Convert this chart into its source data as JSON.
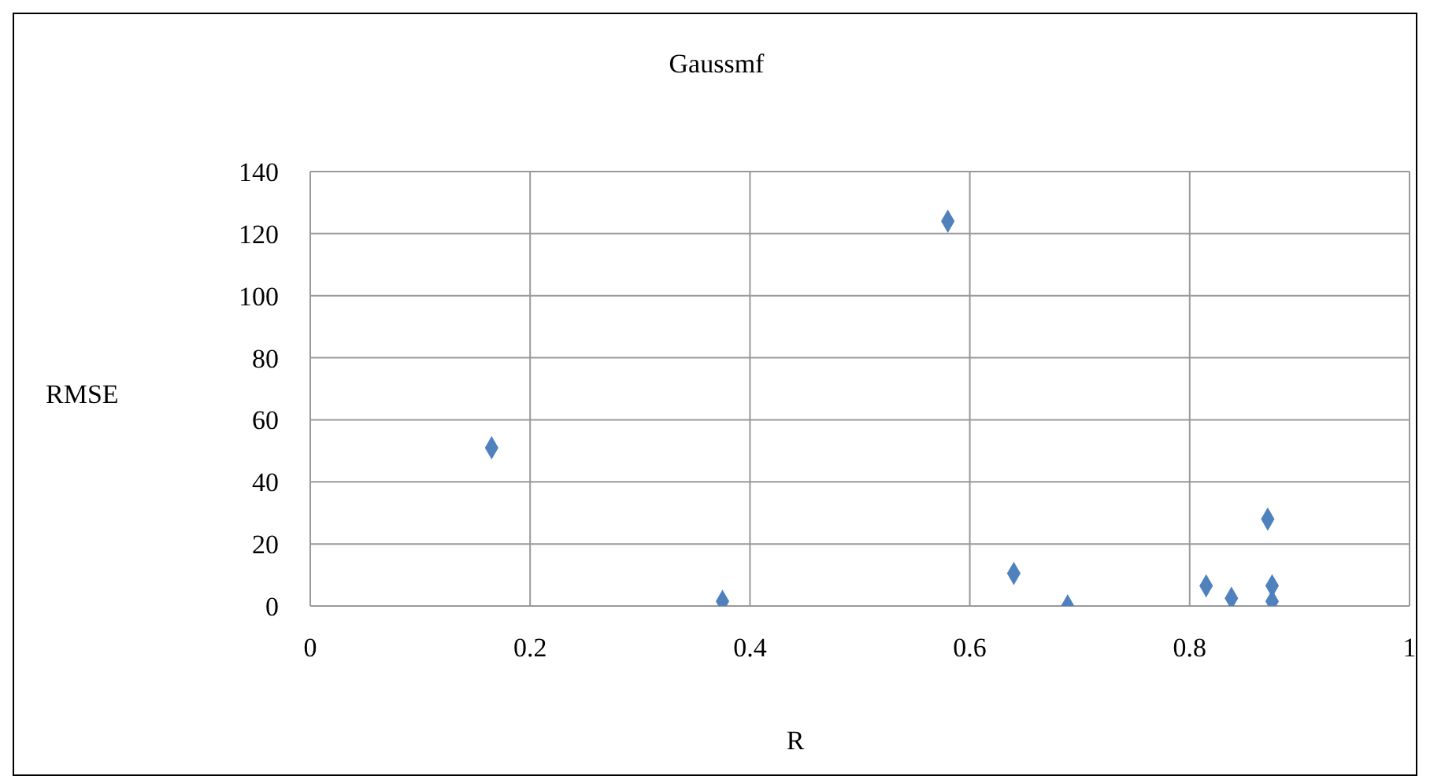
{
  "chart_data": {
    "type": "scatter",
    "title": "Gaussmf",
    "xlabel": "R",
    "ylabel": "RMSE",
    "x": [
      0.165,
      0.375,
      0.58,
      0.64,
      0.689,
      0.815,
      0.838,
      0.871,
      0.875,
      0.875
    ],
    "series": [
      {
        "color": "#4f81bd",
        "values": [
          51,
          1.5,
          124,
          10.5,
          0,
          6.5,
          2.5,
          28,
          6.5,
          1.5
        ]
      }
    ],
    "xlim": [
      0,
      1
    ],
    "xticks": [
      0,
      0.2,
      0.4,
      0.6,
      0.8,
      1
    ],
    "ylim": [
      0,
      140
    ],
    "yticks": [
      0,
      20,
      40,
      60,
      80,
      100,
      120,
      140
    ],
    "grid": true,
    "marker": "diamond",
    "legend": false
  }
}
